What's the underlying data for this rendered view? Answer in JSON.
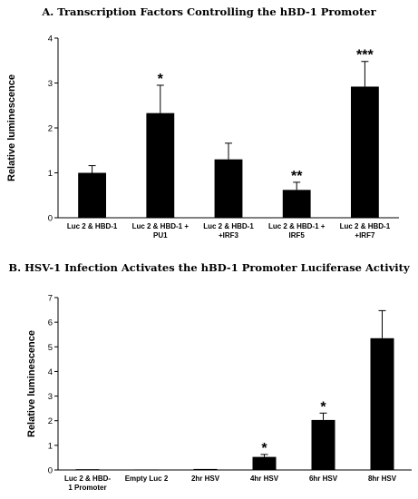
{
  "chart_data": [
    {
      "type": "bar",
      "title": "A.   Transcription Factors Controlling the hBD-1 Promoter",
      "ylabel": "Relative luminescence",
      "xlabel": "",
      "ylim": [
        0,
        4
      ],
      "yticks": [
        0,
        1,
        2,
        3,
        4
      ],
      "categories": [
        [
          "Luc 2 & HBD-1"
        ],
        [
          "Luc 2 & HBD-1 +",
          "PU1"
        ],
        [
          "Luc 2 & HBD-1",
          "+IRF3"
        ],
        [
          "Luc 2 & HBD-1 +",
          "IRF5"
        ],
        [
          "Luc 2 & HBD-1",
          "+IRF7"
        ]
      ],
      "values": [
        1.0,
        2.33,
        1.3,
        0.62,
        2.92
      ],
      "errors": [
        0.16,
        0.62,
        0.36,
        0.17,
        0.56
      ],
      "annotations": [
        "",
        "*",
        "",
        "**",
        "***"
      ],
      "bar_color": "#000000",
      "grid": false
    },
    {
      "type": "bar",
      "title": "B.   HSV-1 Infection Activates the hBD-1 Promoter Luciferase Activity",
      "ylabel": "Relative luminescence",
      "xlabel": "",
      "ylim": [
        0,
        7
      ],
      "yticks": [
        0,
        1,
        2,
        3,
        4,
        5,
        6,
        7
      ],
      "categories": [
        [
          "Luc 2 & HBD-",
          "1 Promoter"
        ],
        [
          "Empty Luc 2"
        ],
        [
          "2hr HSV"
        ],
        [
          "4hr HSV"
        ],
        [
          "6hr HSV"
        ],
        [
          "8hr HSV"
        ]
      ],
      "values": [
        0.03,
        0.02,
        0.04,
        0.53,
        2.03,
        5.35
      ],
      "errors": [
        0.0,
        0.0,
        0.0,
        0.1,
        0.28,
        1.12
      ],
      "annotations": [
        "",
        "",
        "",
        "*",
        "*",
        ""
      ],
      "bar_color": "#000000",
      "grid": false
    }
  ]
}
